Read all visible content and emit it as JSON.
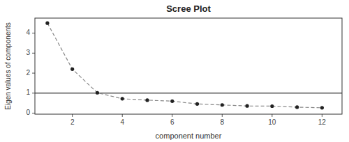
{
  "chart_data": {
    "type": "line",
    "title": "Scree Plot",
    "xlabel": "component number",
    "ylabel": "Eigen values of components",
    "x": [
      1,
      2,
      3,
      4,
      5,
      6,
      7,
      8,
      9,
      10,
      11,
      12
    ],
    "values": [
      4.5,
      2.2,
      1.02,
      0.72,
      0.65,
      0.6,
      0.46,
      0.41,
      0.36,
      0.35,
      0.3,
      0.27
    ],
    "xlim": [
      0.5,
      12.8
    ],
    "ylim": [
      -0.05,
      4.75
    ],
    "xticks": [
      2,
      4,
      6,
      8,
      10,
      12
    ],
    "yticks": [
      0,
      1,
      2,
      3,
      4
    ],
    "reference_line": 1,
    "color": "#888888",
    "line_style": "dashed",
    "marker": "circle",
    "grid": false
  }
}
